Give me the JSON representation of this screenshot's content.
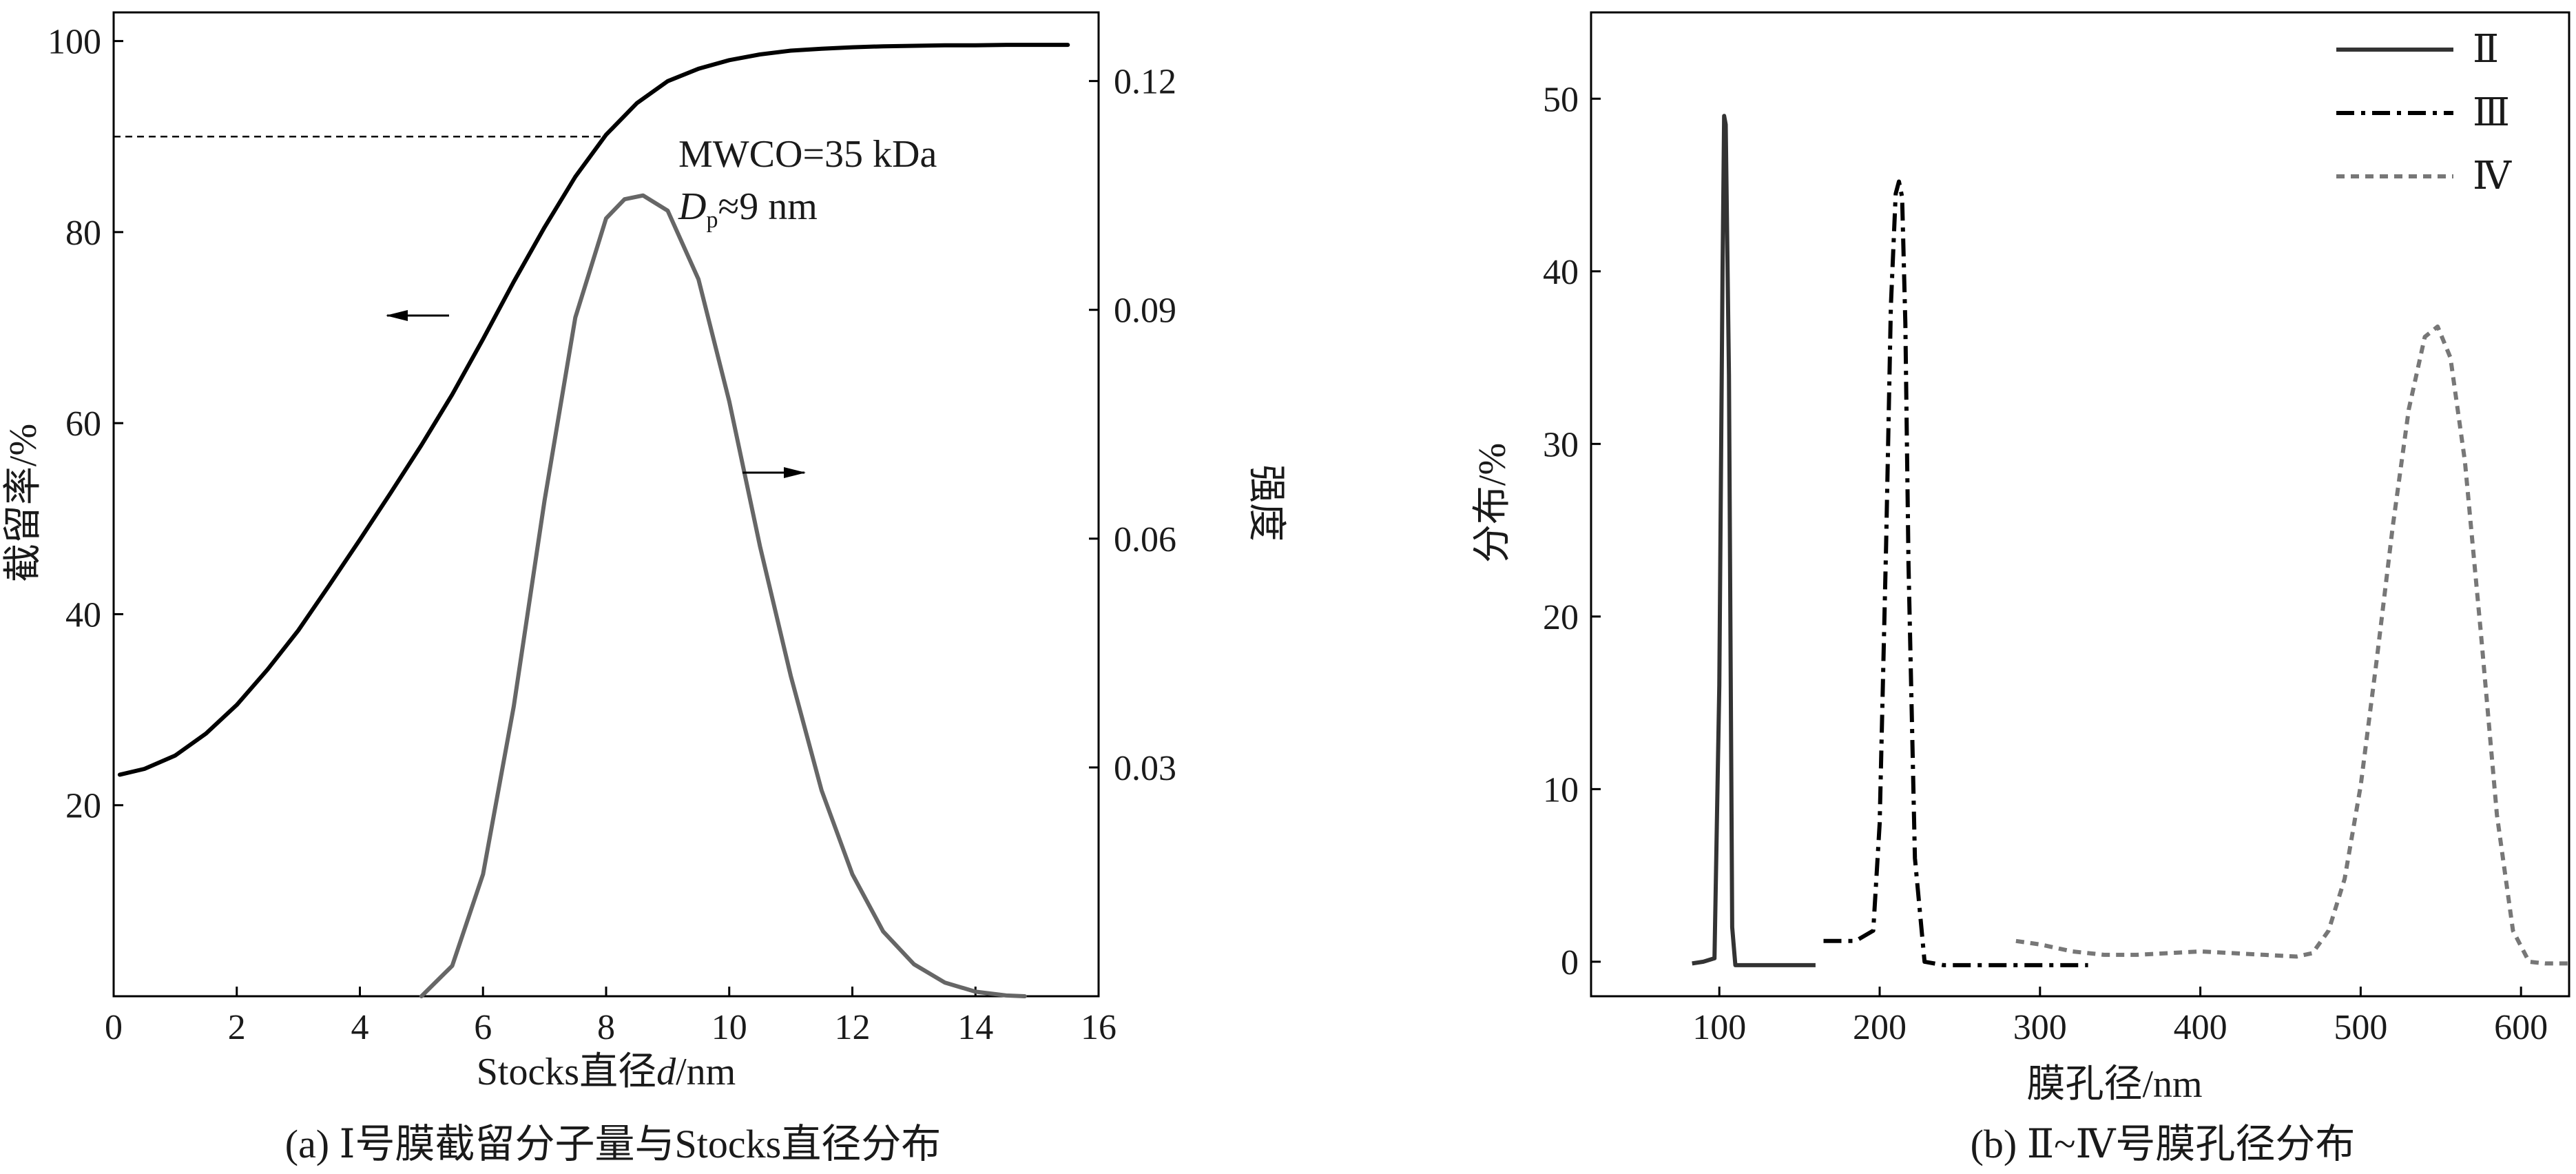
{
  "chart_data": [
    {
      "type": "line",
      "panel": "a",
      "caption": "(a) Ⅰ号膜截留分子量与Stocks直径分布",
      "xlabel": "Stocks直径d/nm",
      "ylabel_left": "截留率/%",
      "ylabel_right": "强度",
      "xlim": [
        0,
        16
      ],
      "ylim_left": [
        0,
        103
      ],
      "ylim_right": [
        0,
        0.129
      ],
      "x_ticks": [
        "0",
        "2",
        "4",
        "6",
        "8",
        "10",
        "12",
        "14",
        "16"
      ],
      "y_left_ticks": [
        "20",
        "40",
        "60",
        "80",
        "100"
      ],
      "y_right_ticks": [
        "0.03",
        "0.06",
        "0.09",
        "0.12"
      ],
      "annotation_line1": "MWCO=35 kDa",
      "annotation_line2_main": "D",
      "annotation_line2_sub": "p",
      "annotation_line2_rest": "≈9 nm",
      "reference": {
        "y": 90,
        "x_end": 8.0,
        "style": "dashed"
      },
      "series": [
        {
          "role": "retention",
          "axis": "left",
          "color": "#000000",
          "x": [
            0.1,
            0.5,
            1.0,
            1.5,
            2.0,
            2.5,
            3.0,
            3.5,
            4.0,
            4.5,
            5.0,
            5.5,
            6.0,
            6.5,
            7.0,
            7.5,
            8.0,
            8.5,
            9.0,
            9.5,
            10.0,
            10.5,
            11.0,
            11.5,
            12.0,
            12.5,
            13.0,
            13.5,
            14.0,
            14.5,
            15.0,
            15.5
          ],
          "y": [
            23.2,
            23.8,
            25.2,
            27.5,
            30.5,
            34.2,
            38.3,
            43.0,
            47.8,
            52.7,
            57.7,
            63.0,
            68.8,
            74.8,
            80.5,
            85.8,
            90.2,
            93.5,
            95.8,
            97.1,
            98.0,
            98.6,
            99.0,
            99.2,
            99.35,
            99.45,
            99.5,
            99.55,
            99.55,
            99.6,
            99.6,
            99.6
          ]
        },
        {
          "role": "intensity",
          "axis": "right",
          "color": "#666666",
          "x": [
            5.0,
            5.5,
            6.0,
            6.5,
            7.0,
            7.5,
            8.0,
            8.3,
            8.6,
            9.0,
            9.5,
            10.0,
            10.5,
            11.0,
            11.5,
            12.0,
            12.5,
            13.0,
            13.5,
            14.0,
            14.5,
            14.8
          ],
          "y": [
            0.0,
            0.004,
            0.016,
            0.038,
            0.065,
            0.089,
            0.102,
            0.1045,
            0.105,
            0.103,
            0.094,
            0.078,
            0.059,
            0.042,
            0.027,
            0.016,
            0.0085,
            0.0042,
            0.0018,
            0.0006,
            0.0001,
            0.0
          ]
        }
      ]
    },
    {
      "type": "line",
      "panel": "b",
      "caption": "(b) Ⅱ~Ⅳ号膜孔径分布",
      "xlabel": "膜孔径/nm",
      "ylabel": "分布/%",
      "xlim": [
        20,
        630
      ],
      "ylim": [
        -2,
        55
      ],
      "x_ticks": [
        "100",
        "200",
        "300",
        "400",
        "500",
        "600"
      ],
      "y_ticks": [
        "0",
        "10",
        "20",
        "30",
        "40",
        "50"
      ],
      "legend_position": "top-right",
      "series": [
        {
          "name": "Ⅱ",
          "style": "solid",
          "color": "#333333",
          "x": [
            83,
            90,
            97,
            100,
            102,
            103,
            104,
            106,
            108,
            110,
            115,
            125,
            140,
            160
          ],
          "y": [
            -0.1,
            0.0,
            0.2,
            16,
            40,
            49,
            48.5,
            34,
            2,
            -0.2,
            -0.2,
            -0.2,
            -0.2,
            -0.2
          ]
        },
        {
          "name": "Ⅲ",
          "style": "dashdot",
          "color": "#000000",
          "x": [
            165,
            185,
            196,
            200,
            204,
            207,
            210,
            212,
            214,
            216,
            218,
            222,
            228,
            240,
            260,
            290,
            330
          ],
          "y": [
            1.2,
            1.2,
            1.8,
            8,
            24,
            38,
            44.5,
            45.2,
            44.3,
            37,
            23,
            6,
            0.0,
            -0.2,
            -0.2,
            -0.2,
            -0.2
          ]
        },
        {
          "name": "Ⅳ",
          "style": "dotted",
          "color": "#777777",
          "x": [
            285,
            300,
            320,
            340,
            360,
            380,
            400,
            420,
            440,
            460,
            470,
            480,
            490,
            500,
            510,
            520,
            530,
            540,
            548,
            556,
            565,
            575,
            585,
            595,
            605,
            615,
            630
          ],
          "y": [
            1.2,
            1.0,
            0.6,
            0.4,
            0.4,
            0.5,
            0.6,
            0.5,
            0.4,
            0.3,
            0.5,
            1.8,
            4.8,
            10.2,
            17.5,
            25.2,
            32.0,
            36.2,
            36.8,
            35.0,
            29.0,
            19.0,
            8.5,
            1.8,
            0.0,
            -0.1,
            -0.1
          ]
        }
      ]
    }
  ]
}
